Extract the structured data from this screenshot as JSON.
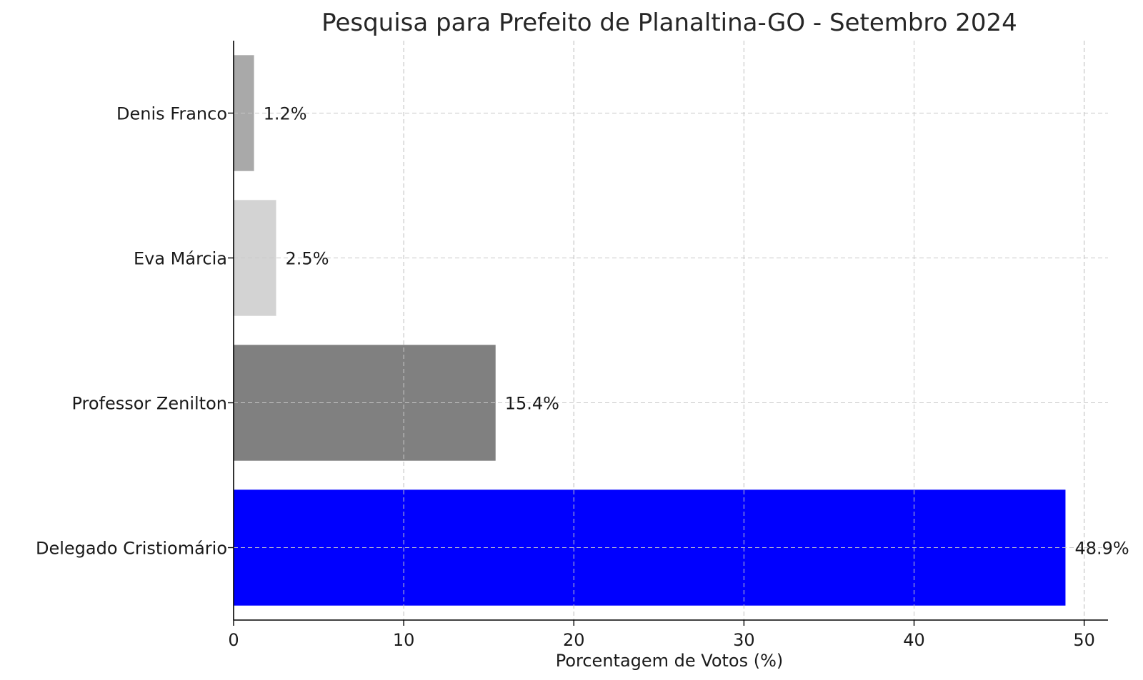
{
  "chart_data": {
    "type": "bar",
    "orientation": "horizontal",
    "title": "Pesquisa para Prefeito de Planaltina-GO - Setembro 2024",
    "xlabel": "Porcentagem de Votos (%)",
    "ylabel": "",
    "xlim": [
      0,
      51.4
    ],
    "xticks": [
      0,
      10,
      20,
      30,
      40,
      50
    ],
    "grid": true,
    "categories": [
      "Delegado Cristiomário",
      "Professor Zenilton",
      "Eva Márcia",
      "Denis Franco"
    ],
    "values": [
      48.9,
      15.4,
      2.5,
      1.2
    ],
    "value_labels": [
      "48.9%",
      "15.4%",
      "2.5%",
      "1.2%"
    ],
    "colors": [
      "#0000ff",
      "#808080",
      "#d3d3d3",
      "#a9a9a9"
    ]
  }
}
